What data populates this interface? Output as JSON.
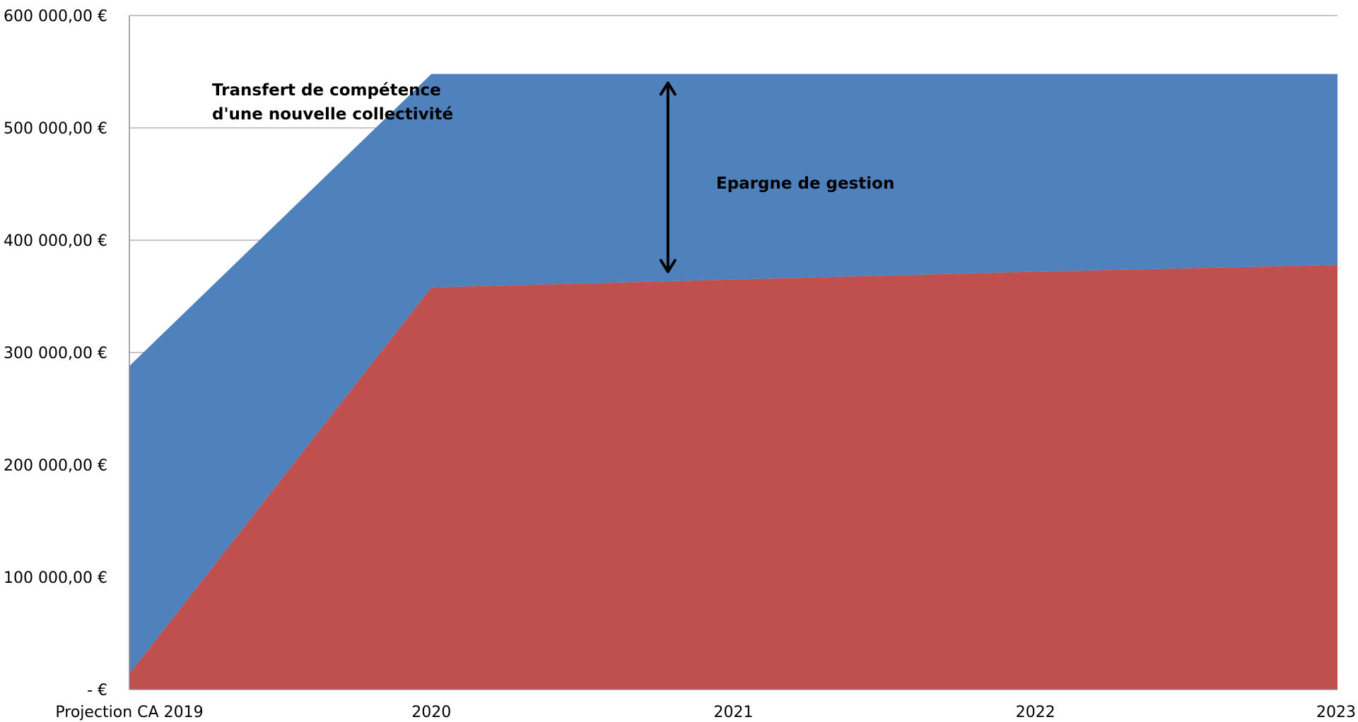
{
  "chart_data": {
    "type": "area",
    "stacked": true,
    "categories": [
      "Projection CA 2019",
      "2020",
      "2021",
      "2022",
      "2023"
    ],
    "series": [
      {
        "values": [
          14000,
          358000,
          365000,
          372000,
          378000
        ],
        "color": "#C0504D"
      },
      {
        "values": [
          274000,
          190000,
          183000,
          176000,
          170000
        ],
        "color": "#4F81BD"
      }
    ],
    "ylim": [
      0,
      600000
    ],
    "y_ticks": [
      0,
      100000,
      200000,
      300000,
      400000,
      500000,
      600000
    ],
    "y_tick_labels": [
      "-  €",
      "100 000,00 €",
      "200 000,00 €",
      "300 000,00 €",
      "400 000,00 €",
      "500 000,00 €",
      "600 000,00 €"
    ],
    "grid": true,
    "annotations": [
      {
        "text_lines": [
          "Transfert de compétence",
          "d'une nouvelle collectivité"
        ]
      },
      {
        "text_lines": [
          "Epargne de gestion"
        ],
        "arrow": {
          "x": 1.83,
          "y_from": 372000,
          "y_to": 540000
        }
      }
    ]
  }
}
